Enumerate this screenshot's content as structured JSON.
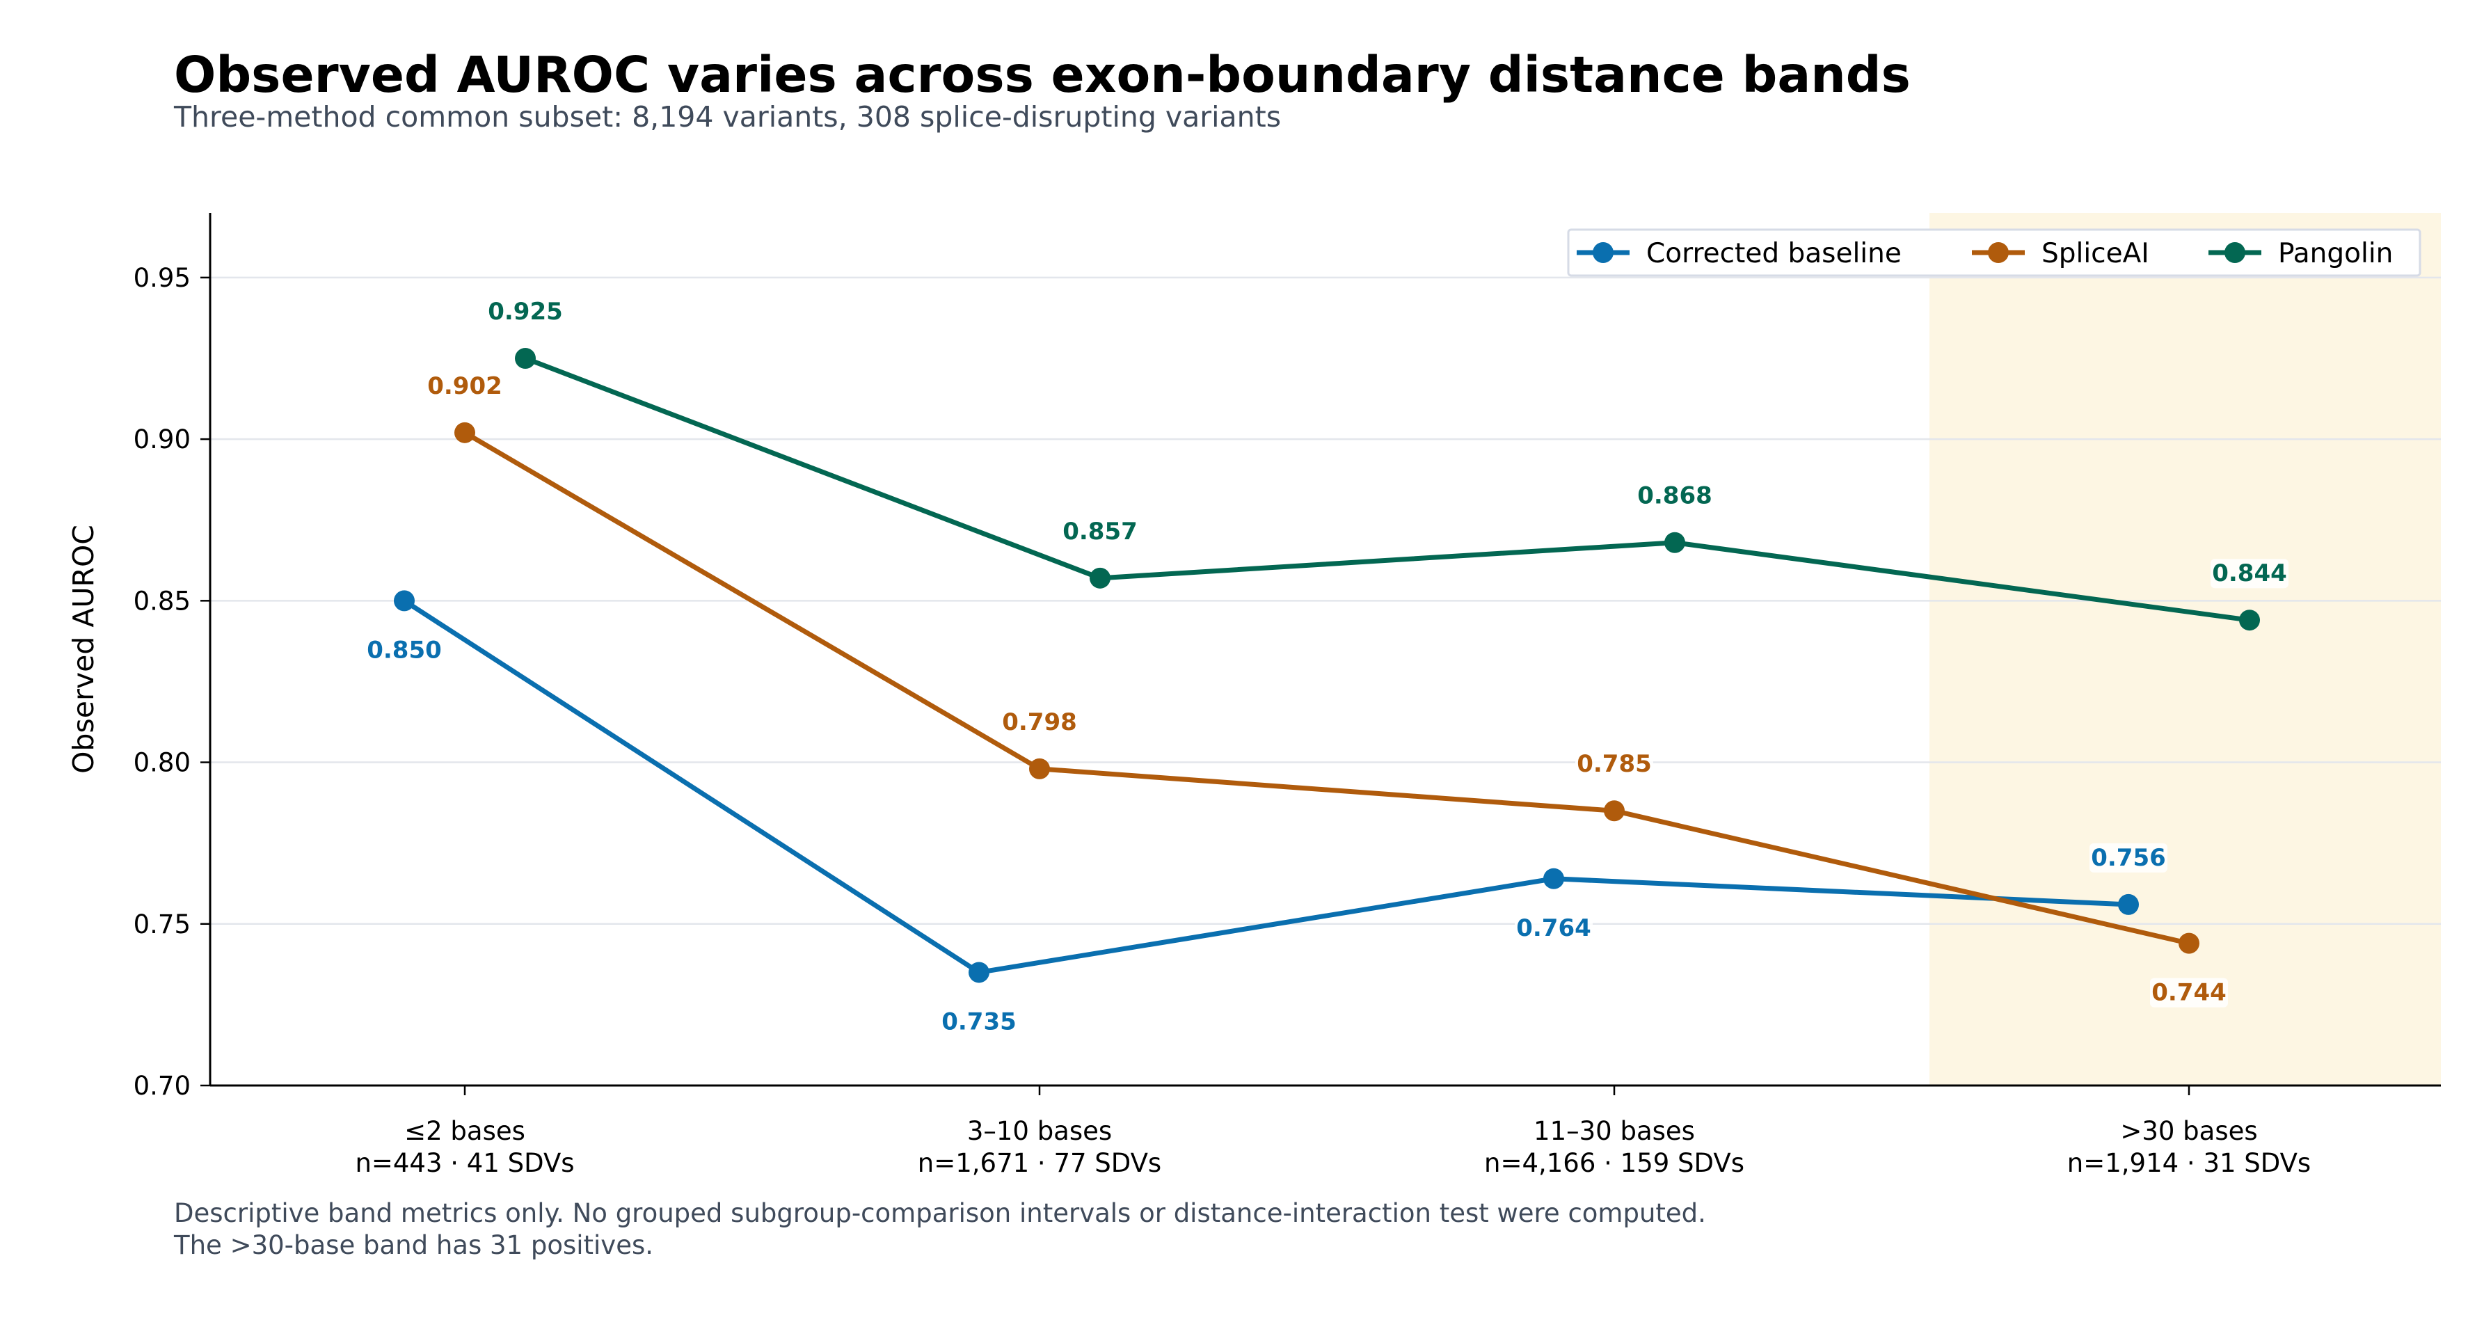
{
  "chart_data": {
    "type": "line",
    "title": "Observed AUROC varies across exon-boundary distance bands",
    "subtitle": "Three-method common subset: 8,194 variants, 308 splice-disrupting variants",
    "ylabel": "Observed AUROC",
    "xlabel": "",
    "ylim": [
      0.7,
      0.97
    ],
    "yticks": [
      "0.70",
      "0.75",
      "0.80",
      "0.85",
      "0.90",
      "0.95"
    ],
    "grid": "horizontal",
    "legend_position": "top-right",
    "highlight_category": ">30 bases",
    "highlight_color": "#fdf6e3",
    "categories": [
      {
        "label": "≤2 bases",
        "sublabel": "n=443 · 41 SDVs"
      },
      {
        "label": "3–10 bases",
        "sublabel": "n=1,671 · 77 SDVs"
      },
      {
        "label": "11–30 bases",
        "sublabel": "n=4,166 · 159 SDVs"
      },
      {
        "label": ">30 bases",
        "sublabel": "n=1,914 · 31 SDVs"
      }
    ],
    "series": [
      {
        "name": "Corrected baseline",
        "color": "#0a6faf",
        "values": [
          0.85,
          0.735,
          0.764,
          0.756
        ],
        "labels": [
          "0.850",
          "0.735",
          "0.764",
          "0.756"
        ],
        "label_side": [
          "below",
          "below",
          "below",
          "above"
        ]
      },
      {
        "name": "SpliceAI",
        "color": "#b05b0c",
        "values": [
          0.902,
          0.798,
          0.785,
          0.744
        ],
        "labels": [
          "0.902",
          "0.798",
          "0.785",
          "0.744"
        ],
        "label_side": [
          "above",
          "above",
          "above",
          "below"
        ]
      },
      {
        "name": "Pangolin",
        "color": "#036752",
        "values": [
          0.925,
          0.857,
          0.868,
          0.844
        ],
        "labels": [
          "0.925",
          "0.857",
          "0.868",
          "0.844"
        ],
        "label_side": [
          "above",
          "above",
          "above",
          "above"
        ]
      }
    ],
    "notes": [
      "Descriptive band metrics only. No grouped subgroup-comparison intervals or distance-interaction test were computed.",
      "The >30-base band has 31 positives."
    ]
  }
}
